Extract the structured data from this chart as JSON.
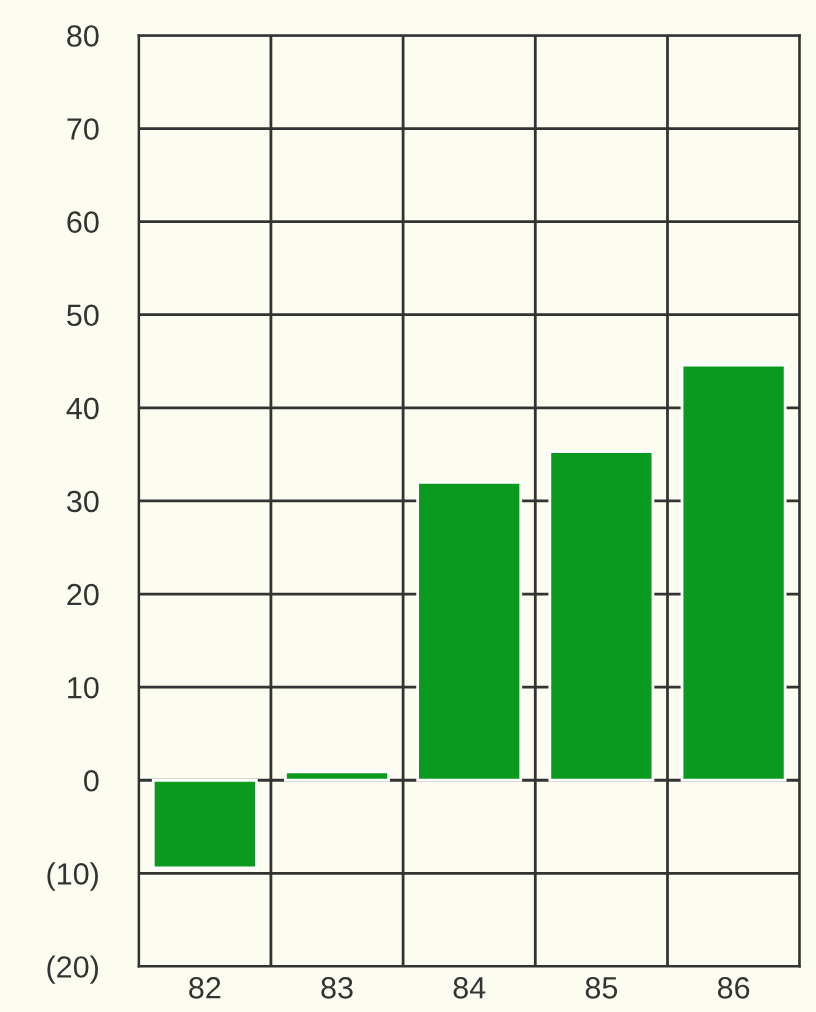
{
  "chart_data": {
    "type": "bar",
    "categories": [
      "82",
      "83",
      "84",
      "85",
      "86"
    ],
    "values": [
      -9.4,
      0.9,
      32,
      35.3,
      44.6
    ],
    "color": "#0a9a1e",
    "ylim": [
      -20,
      80
    ],
    "yticks": [
      {
        "value": -20,
        "label": "(20)"
      },
      {
        "value": -10,
        "label": "(10)"
      },
      0,
      10,
      20,
      30,
      40,
      50,
      60,
      70,
      80
    ],
    "grid": true
  }
}
